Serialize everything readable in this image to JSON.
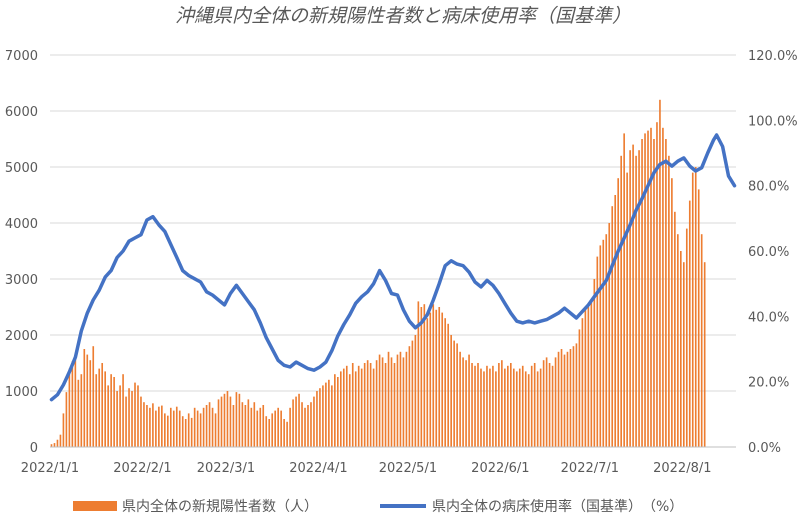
{
  "chart_data": {
    "type": "bar+line",
    "title": "沖縄県内全体の新規陽性者数と病床使用率（国基準）",
    "x_start": "2022-01-01",
    "x_end": "2022-08-18",
    "x_tick_labels": [
      "2022/1/1",
      "2022/2/1",
      "2022/3/1",
      "2022/4/1",
      "2022/5/1",
      "2022/6/1",
      "2022/7/1",
      "2022/8/1"
    ],
    "y_left": {
      "min": 0,
      "max": 7000,
      "step": 1000,
      "tick_labels": [
        "0",
        "1000",
        "2000",
        "3000",
        "4000",
        "5000",
        "6000",
        "7000"
      ]
    },
    "y_right": {
      "min": 0,
      "max": 120,
      "step": 20,
      "tick_labels": [
        "0.0%",
        "20.0%",
        "40.0%",
        "60.0%",
        "80.0%",
        "100.0%",
        "120.0%"
      ]
    },
    "grid": true,
    "legend_position": "bottom",
    "series": [
      {
        "name": "県内全体の新規陽性者数（人）",
        "kind": "bar",
        "axis": "left",
        "color": "#ED7D31",
        "daily_values": [
          50,
          70,
          130,
          220,
          600,
          980,
          1400,
          1530,
          1620,
          1200,
          1300,
          1750,
          1650,
          1550,
          1800,
          1300,
          1400,
          1500,
          1350,
          1100,
          1300,
          1250,
          1000,
          1100,
          1300,
          900,
          1050,
          1000,
          1150,
          1100,
          900,
          800,
          750,
          700,
          780,
          650,
          720,
          740,
          600,
          560,
          700,
          650,
          720,
          650,
          550,
          500,
          600,
          520,
          700,
          650,
          600,
          700,
          750,
          800,
          700,
          600,
          850,
          900,
          950,
          1000,
          900,
          750,
          980,
          950,
          800,
          750,
          850,
          700,
          800,
          650,
          700,
          750,
          550,
          500,
          600,
          650,
          700,
          650,
          500,
          450,
          700,
          850,
          900,
          950,
          800,
          700,
          750,
          800,
          900,
          1000,
          1050,
          1100,
          1150,
          1200,
          1100,
          1300,
          1250,
          1350,
          1400,
          1450,
          1300,
          1500,
          1350,
          1450,
          1400,
          1500,
          1550,
          1500,
          1400,
          1550,
          1650,
          1600,
          1500,
          1700,
          1600,
          1500,
          1650,
          1700,
          1600,
          1700,
          1800,
          1900,
          2000,
          2600,
          2500,
          2550,
          2300,
          2400,
          2550,
          2450,
          2500,
          2400,
          2300,
          2200,
          2000,
          1900,
          1850,
          1700,
          1600,
          1550,
          1650,
          1500,
          1450,
          1500,
          1400,
          1350,
          1450,
          1400,
          1450,
          1350,
          1500,
          1550,
          1400,
          1450,
          1500,
          1400,
          1350,
          1400,
          1450,
          1350,
          1300,
          1450,
          1500,
          1350,
          1400,
          1550,
          1600,
          1500,
          1450,
          1600,
          1700,
          1750,
          1650,
          1700,
          1750,
          1800,
          1850,
          2100,
          2300,
          2450,
          2500,
          2600,
          3000,
          3400,
          3600,
          3700,
          3800,
          4000,
          4300,
          4500,
          4800,
          5200,
          5600,
          4900,
          5300,
          5400,
          5200,
          5300,
          5500,
          5600,
          5650,
          5700,
          5500,
          5800,
          6200,
          5700,
          5500,
          5200,
          4800,
          4200,
          3800,
          3500,
          3300,
          3900,
          4400,
          4900,
          5000,
          4600,
          3800,
          3300
        ]
      },
      {
        "name": "県内全体の病床使用率（国基準）　（%）",
        "kind": "line",
        "axis": "right",
        "color": "#4472C4",
        "points": [
          [
            "2022-01-01",
            14.5
          ],
          [
            "2022-01-03",
            16.0
          ],
          [
            "2022-01-05",
            19.0
          ],
          [
            "2022-01-07",
            23.0
          ],
          [
            "2022-01-09",
            27.5
          ],
          [
            "2022-01-11",
            35.5
          ],
          [
            "2022-01-13",
            41.0
          ],
          [
            "2022-01-15",
            45.0
          ],
          [
            "2022-01-17",
            48.0
          ],
          [
            "2022-01-19",
            52.0
          ],
          [
            "2022-01-21",
            54.0
          ],
          [
            "2022-01-23",
            58.0
          ],
          [
            "2022-01-25",
            60.0
          ],
          [
            "2022-01-27",
            63.0
          ],
          [
            "2022-01-29",
            64.0
          ],
          [
            "2022-01-31",
            65.0
          ],
          [
            "2022-02-02",
            69.5
          ],
          [
            "2022-02-04",
            70.5
          ],
          [
            "2022-02-06",
            68.0
          ],
          [
            "2022-02-08",
            66.0
          ],
          [
            "2022-02-10",
            62.0
          ],
          [
            "2022-02-12",
            58.0
          ],
          [
            "2022-02-14",
            54.0
          ],
          [
            "2022-02-16",
            52.5
          ],
          [
            "2022-02-18",
            51.5
          ],
          [
            "2022-02-20",
            50.5
          ],
          [
            "2022-02-22",
            47.5
          ],
          [
            "2022-02-24",
            46.5
          ],
          [
            "2022-02-26",
            45.0
          ],
          [
            "2022-02-28",
            43.5
          ],
          [
            "2022-03-02",
            47.0
          ],
          [
            "2022-03-04",
            49.5
          ],
          [
            "2022-03-06",
            47.0
          ],
          [
            "2022-03-08",
            44.5
          ],
          [
            "2022-03-10",
            42.0
          ],
          [
            "2022-03-12",
            38.0
          ],
          [
            "2022-03-14",
            33.5
          ],
          [
            "2022-03-16",
            30.0
          ],
          [
            "2022-03-18",
            26.5
          ],
          [
            "2022-03-20",
            25.0
          ],
          [
            "2022-03-22",
            24.5
          ],
          [
            "2022-03-24",
            26.0
          ],
          [
            "2022-03-26",
            25.0
          ],
          [
            "2022-03-28",
            24.0
          ],
          [
            "2022-03-30",
            23.5
          ],
          [
            "2022-04-01",
            24.5
          ],
          [
            "2022-04-03",
            26.0
          ],
          [
            "2022-04-05",
            29.5
          ],
          [
            "2022-04-07",
            34.0
          ],
          [
            "2022-04-09",
            37.5
          ],
          [
            "2022-04-11",
            40.5
          ],
          [
            "2022-04-13",
            44.0
          ],
          [
            "2022-04-15",
            46.0
          ],
          [
            "2022-04-17",
            47.5
          ],
          [
            "2022-04-19",
            50.0
          ],
          [
            "2022-04-21",
            54.0
          ],
          [
            "2022-04-23",
            51.0
          ],
          [
            "2022-04-25",
            47.0
          ],
          [
            "2022-04-27",
            46.5
          ],
          [
            "2022-04-29",
            42.0
          ],
          [
            "2022-05-01",
            38.5
          ],
          [
            "2022-05-03",
            36.5
          ],
          [
            "2022-05-05",
            38.0
          ],
          [
            "2022-05-07",
            40.5
          ],
          [
            "2022-05-09",
            45.0
          ],
          [
            "2022-05-11",
            50.0
          ],
          [
            "2022-05-13",
            55.5
          ],
          [
            "2022-05-15",
            57.0
          ],
          [
            "2022-05-17",
            56.0
          ],
          [
            "2022-05-19",
            55.5
          ],
          [
            "2022-05-21",
            53.5
          ],
          [
            "2022-05-23",
            50.5
          ],
          [
            "2022-05-25",
            49.0
          ],
          [
            "2022-05-27",
            51.0
          ],
          [
            "2022-05-29",
            49.5
          ],
          [
            "2022-05-31",
            47.0
          ],
          [
            "2022-06-02",
            44.0
          ],
          [
            "2022-06-04",
            41.0
          ],
          [
            "2022-06-06",
            38.5
          ],
          [
            "2022-06-08",
            38.0
          ],
          [
            "2022-06-10",
            38.5
          ],
          [
            "2022-06-12",
            38.0
          ],
          [
            "2022-06-14",
            38.5
          ],
          [
            "2022-06-16",
            39.0
          ],
          [
            "2022-06-18",
            40.0
          ],
          [
            "2022-06-20",
            41.0
          ],
          [
            "2022-06-22",
            42.5
          ],
          [
            "2022-06-24",
            41.0
          ],
          [
            "2022-06-26",
            39.5
          ],
          [
            "2022-06-28",
            41.5
          ],
          [
            "2022-06-30",
            43.5
          ],
          [
            "2022-07-02",
            46.0
          ],
          [
            "2022-07-04",
            48.5
          ],
          [
            "2022-07-06",
            51.0
          ],
          [
            "2022-07-08",
            55.5
          ],
          [
            "2022-07-10",
            60.0
          ],
          [
            "2022-07-12",
            64.0
          ],
          [
            "2022-07-14",
            68.0
          ],
          [
            "2022-07-16",
            72.5
          ],
          [
            "2022-07-18",
            76.0
          ],
          [
            "2022-07-20",
            80.0
          ],
          [
            "2022-07-22",
            84.0
          ],
          [
            "2022-07-24",
            86.5
          ],
          [
            "2022-07-26",
            87.5
          ],
          [
            "2022-07-28",
            86.0
          ],
          [
            "2022-07-30",
            87.5
          ],
          [
            "2022-08-01",
            88.5
          ],
          [
            "2022-08-03",
            86.0
          ],
          [
            "2022-08-05",
            84.5
          ],
          [
            "2022-08-07",
            85.5
          ],
          [
            "2022-08-09",
            90.0
          ],
          [
            "2022-08-11",
            94.0
          ],
          [
            "2022-08-12",
            95.5
          ],
          [
            "2022-08-14",
            92.0
          ],
          [
            "2022-08-16",
            83.0
          ],
          [
            "2022-08-18",
            80.0
          ]
        ]
      }
    ]
  }
}
